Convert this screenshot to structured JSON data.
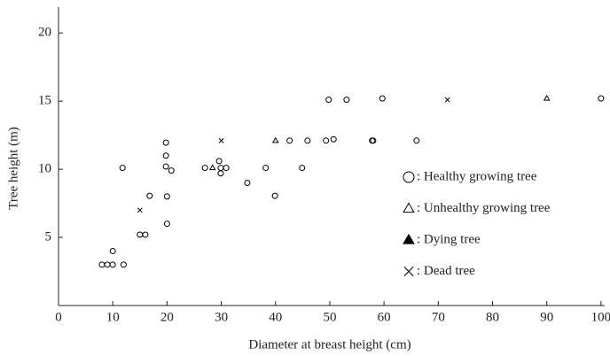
{
  "chart_data": {
    "type": "scatter",
    "xlabel": "Diameter at breast height (cm)",
    "ylabel": "Tree height (m)",
    "xlim": [
      0,
      101
    ],
    "ylim": [
      0,
      21.9
    ],
    "xticks": [
      0,
      10,
      20,
      30,
      40,
      50,
      60,
      70,
      80,
      90,
      100
    ],
    "yticks": [
      5,
      10,
      15,
      20
    ],
    "series": [
      {
        "name": ": Healthy growing tree",
        "color": "#000000",
        "marker": "circle",
        "x": [
          8,
          9,
          10,
          12,
          10,
          15,
          16,
          11.8,
          16.8,
          19.8,
          19.8,
          19.8,
          20,
          20,
          20.8,
          27,
          29.6,
          29.9,
          29.9,
          30.9,
          34.8,
          38.2,
          39.9,
          42.6,
          44.9,
          45.9,
          49.3,
          50.7,
          49.8,
          53.1,
          57.8,
          58,
          59.7,
          66,
          100
        ],
        "values": [
          3,
          3,
          3,
          3,
          4,
          5.2,
          5.2,
          10.1,
          8.05,
          11.95,
          11,
          10.2,
          8,
          6,
          9.9,
          10.1,
          10.6,
          10.1,
          9.7,
          10.1,
          9,
          10.1,
          8.05,
          12.1,
          10.1,
          12.1,
          12.1,
          12.2,
          15.1,
          15.1,
          12.1,
          12.1,
          15.2,
          12.1,
          15.2
        ]
      },
      {
        "name": ": Unhealthy growing tree",
        "color": "#000000",
        "marker": "triangle",
        "x": [
          28.4,
          40,
          90
        ],
        "values": [
          10.1,
          12.1,
          15.2
        ]
      },
      {
        "name": ": Dying tree",
        "color": "#000000",
        "marker": "filled-triangle",
        "x": [],
        "values": []
      },
      {
        "name": ": Dead tree",
        "color": "#000000",
        "marker": "x",
        "x": [
          15,
          30,
          71.7
        ],
        "values": [
          7,
          12.1,
          15.1
        ]
      }
    ]
  }
}
